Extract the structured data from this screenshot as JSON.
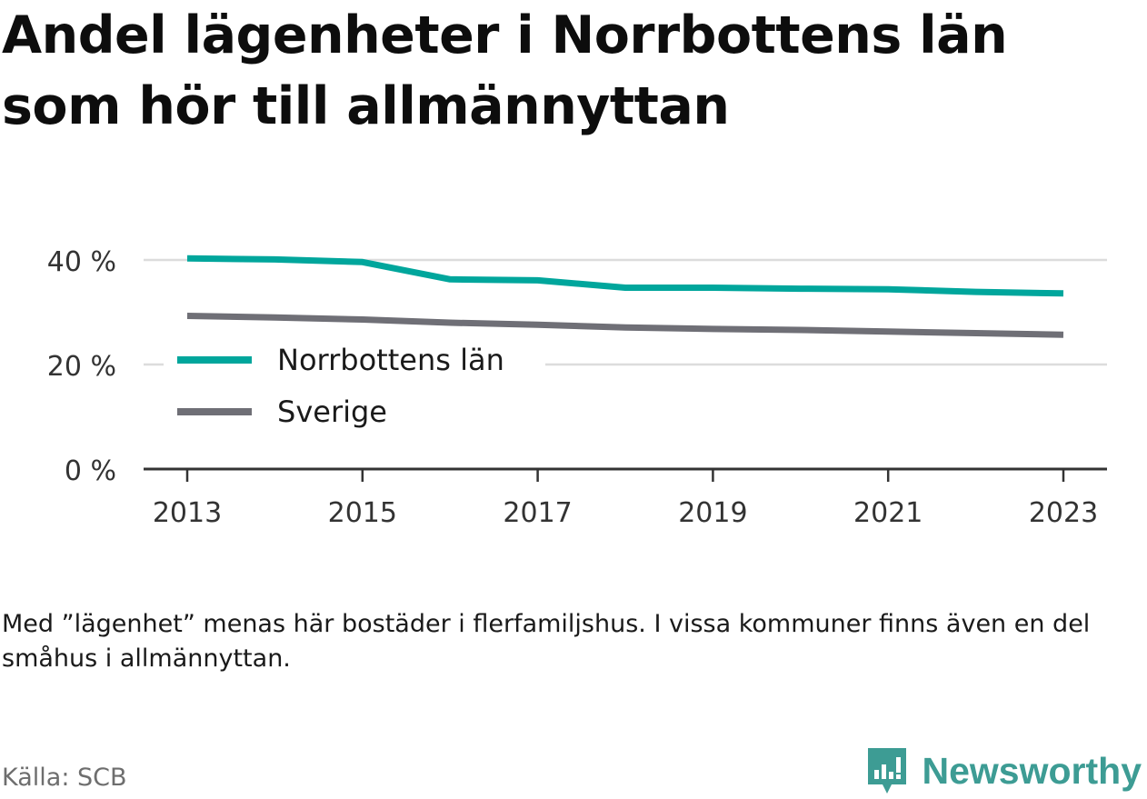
{
  "title": "Andel lägenheter i Norrbottens län som hör till allmännyttan",
  "note": "Med ”lägenhet” menas här bostäder i flerfamiljshus. I vissa kommuner finns även en del småhus i allmännyttan.",
  "source": "Källa: SCB",
  "brand": "Newsworthy",
  "colors": {
    "norrbotten": "#00a69c",
    "sverige": "#6f6f76",
    "brand": "#3d9c94",
    "grid": "#dcdcdc"
  },
  "chart_data": {
    "type": "line",
    "x": [
      2013,
      2014,
      2015,
      2016,
      2017,
      2018,
      2019,
      2020,
      2021,
      2022,
      2023
    ],
    "series": [
      {
        "name": "Norrbottens län",
        "values": [
          40.3,
          40.1,
          39.6,
          36.3,
          36.1,
          34.7,
          34.7,
          34.5,
          34.4,
          33.9,
          33.6
        ]
      },
      {
        "name": "Sverige",
        "values": [
          29.3,
          29.0,
          28.6,
          28.0,
          27.6,
          27.1,
          26.8,
          26.6,
          26.3,
          26.0,
          25.7
        ]
      }
    ],
    "x_ticks": [
      2013,
      2015,
      2017,
      2019,
      2021,
      2023
    ],
    "x_tick_labels": [
      "2013",
      "2015",
      "2017",
      "2019",
      "2021",
      "2023"
    ],
    "y_ticks": [
      0,
      20,
      40
    ],
    "y_tick_labels": [
      "0 %",
      "20 %",
      "40 %"
    ],
    "ylim": [
      0,
      40
    ],
    "xlabel": "",
    "ylabel": "",
    "grid": true,
    "legend_position": "middle-left"
  }
}
